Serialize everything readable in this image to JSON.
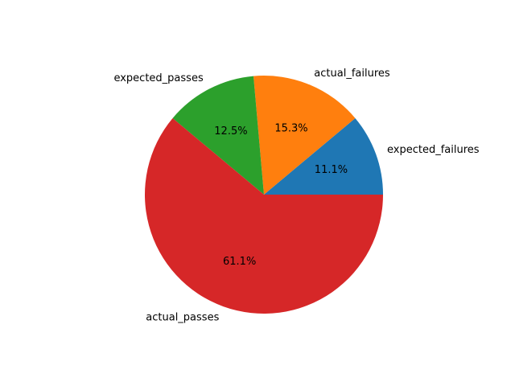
{
  "chart_data": {
    "type": "pie",
    "title": "",
    "categories": [
      "expected_failures",
      "actual_failures",
      "expected_passes",
      "actual_passes"
    ],
    "values": [
      11.1,
      15.3,
      12.5,
      61.1
    ],
    "value_labels": [
      "11.1%",
      "15.3%",
      "12.5%",
      "61.1%"
    ],
    "colors": [
      "#1f77b4",
      "#ff7f0e",
      "#2ca02c",
      "#d62728"
    ],
    "start_angle_deg": 0,
    "direction": "counterclockwise",
    "legend": "none"
  }
}
